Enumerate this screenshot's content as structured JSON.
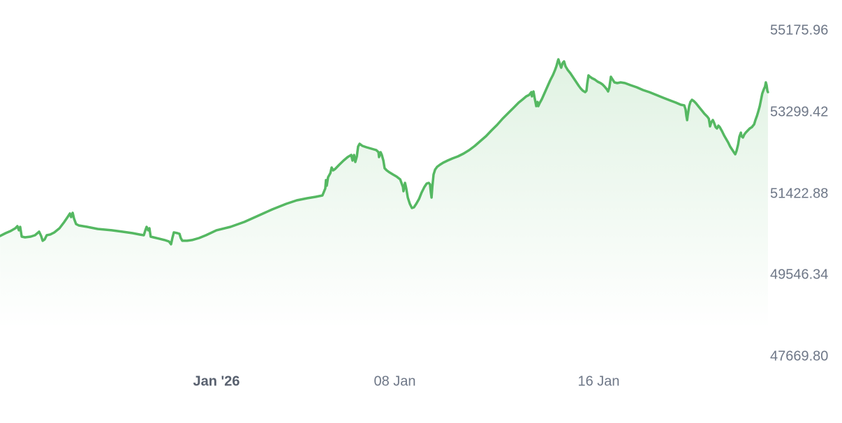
{
  "chart_data": {
    "type": "area",
    "title": "",
    "x_axis": {
      "unit_note": "day 0 = 01 Jan 2026",
      "ticks": [
        {
          "label": "Jan '26",
          "day": 0,
          "bold": true
        },
        {
          "label": "08 Jan",
          "day": 7,
          "bold": false
        },
        {
          "label": "16 Jan",
          "day": 15,
          "bold": false
        }
      ]
    },
    "y_axis": {
      "ticks": [
        {
          "label": "55175.96",
          "value": 55175.96
        },
        {
          "label": "53299.42",
          "value": 53299.42
        },
        {
          "label": "51422.88",
          "value": 51422.88
        },
        {
          "label": "49546.34",
          "value": 49546.34
        },
        {
          "label": "47669.80",
          "value": 47669.8
        }
      ]
    },
    "style": {
      "line_color": "#55B862",
      "fill_color": "#55B862",
      "fill_opacity_top": 0.18,
      "label_color": "#6E7787",
      "bold_label_color": "#59616F",
      "background": "#FFFFFF"
    },
    "series": [
      {
        "name": "price",
        "points": [
          [
            -8.49,
            50451
          ],
          [
            -8.27,
            50515
          ],
          [
            -8.08,
            50563
          ],
          [
            -7.89,
            50627
          ],
          [
            -7.81,
            50676
          ],
          [
            -7.75,
            50580
          ],
          [
            -7.7,
            50660
          ],
          [
            -7.64,
            50435
          ],
          [
            -7.51,
            50419
          ],
          [
            -7.29,
            50435
          ],
          [
            -7.12,
            50467
          ],
          [
            -6.96,
            50548
          ],
          [
            -6.88,
            50451
          ],
          [
            -6.82,
            50339
          ],
          [
            -6.74,
            50371
          ],
          [
            -6.66,
            50467
          ],
          [
            -6.52,
            50484
          ],
          [
            -6.36,
            50532
          ],
          [
            -6.16,
            50627
          ],
          [
            -5.97,
            50773
          ],
          [
            -5.84,
            50885
          ],
          [
            -5.75,
            50966
          ],
          [
            -5.7,
            50885
          ],
          [
            -5.64,
            50982
          ],
          [
            -5.59,
            50853
          ],
          [
            -5.51,
            50725
          ],
          [
            -5.4,
            50692
          ],
          [
            -5.07,
            50660
          ],
          [
            -4.66,
            50612
          ],
          [
            -4.11,
            50580
          ],
          [
            -3.7,
            50548
          ],
          [
            -3.29,
            50515
          ],
          [
            -3.01,
            50483
          ],
          [
            -2.85,
            50467
          ],
          [
            -2.79,
            50580
          ],
          [
            -2.74,
            50660
          ],
          [
            -2.68,
            50580
          ],
          [
            -2.63,
            50627
          ],
          [
            -2.58,
            50435
          ],
          [
            -2.47,
            50419
          ],
          [
            -2.25,
            50387
          ],
          [
            -2.03,
            50355
          ],
          [
            -1.86,
            50322
          ],
          [
            -1.78,
            50259
          ],
          [
            -1.73,
            50403
          ],
          [
            -1.67,
            50532
          ],
          [
            -1.53,
            50515
          ],
          [
            -1.45,
            50499
          ],
          [
            -1.4,
            50403
          ],
          [
            -1.34,
            50339
          ],
          [
            -1.15,
            50339
          ],
          [
            -0.96,
            50355
          ],
          [
            -0.68,
            50403
          ],
          [
            -0.41,
            50467
          ],
          [
            0.0,
            50580
          ],
          [
            0.55,
            50660
          ],
          [
            1.1,
            50773
          ],
          [
            1.64,
            50917
          ],
          [
            2.19,
            51061
          ],
          [
            2.74,
            51190
          ],
          [
            3.15,
            51270
          ],
          [
            3.56,
            51318
          ],
          [
            3.89,
            51350
          ],
          [
            4.16,
            51383
          ],
          [
            4.27,
            51543
          ],
          [
            4.3,
            51736
          ],
          [
            4.33,
            51608
          ],
          [
            4.38,
            51800
          ],
          [
            4.47,
            51898
          ],
          [
            4.52,
            52026
          ],
          [
            4.58,
            51962
          ],
          [
            4.66,
            51994
          ],
          [
            4.82,
            52090
          ],
          [
            4.99,
            52187
          ],
          [
            5.15,
            52267
          ],
          [
            5.29,
            52315
          ],
          [
            5.34,
            52187
          ],
          [
            5.4,
            52315
          ],
          [
            5.45,
            52154
          ],
          [
            5.51,
            52283
          ],
          [
            5.56,
            52508
          ],
          [
            5.62,
            52572
          ],
          [
            5.73,
            52524
          ],
          [
            5.89,
            52492
          ],
          [
            6.08,
            52459
          ],
          [
            6.27,
            52427
          ],
          [
            6.36,
            52379
          ],
          [
            6.38,
            52267
          ],
          [
            6.44,
            52379
          ],
          [
            6.49,
            52315
          ],
          [
            6.55,
            52187
          ],
          [
            6.6,
            52010
          ],
          [
            6.68,
            51962
          ],
          [
            6.79,
            51914
          ],
          [
            6.93,
            51865
          ],
          [
            7.07,
            51817
          ],
          [
            7.21,
            51753
          ],
          [
            7.32,
            51576
          ],
          [
            7.34,
            51480
          ],
          [
            7.37,
            51576
          ],
          [
            7.4,
            51672
          ],
          [
            7.45,
            51543
          ],
          [
            7.51,
            51334
          ],
          [
            7.59,
            51190
          ],
          [
            7.67,
            51093
          ],
          [
            7.75,
            51109
          ],
          [
            7.84,
            51190
          ],
          [
            7.95,
            51302
          ],
          [
            8.05,
            51447
          ],
          [
            8.16,
            51576
          ],
          [
            8.25,
            51656
          ],
          [
            8.33,
            51672
          ],
          [
            8.38,
            51640
          ],
          [
            8.41,
            51463
          ],
          [
            8.44,
            51334
          ],
          [
            8.47,
            51576
          ],
          [
            8.52,
            51865
          ],
          [
            8.58,
            51977
          ],
          [
            8.66,
            52042
          ],
          [
            8.77,
            52090
          ],
          [
            8.9,
            52138
          ],
          [
            9.07,
            52187
          ],
          [
            9.26,
            52235
          ],
          [
            9.48,
            52283
          ],
          [
            9.7,
            52347
          ],
          [
            9.92,
            52427
          ],
          [
            10.14,
            52524
          ],
          [
            10.36,
            52636
          ],
          [
            10.58,
            52749
          ],
          [
            10.79,
            52877
          ],
          [
            11.01,
            53006
          ],
          [
            11.23,
            53151
          ],
          [
            11.45,
            53279
          ],
          [
            11.67,
            53408
          ],
          [
            11.86,
            53520
          ],
          [
            12.03,
            53601
          ],
          [
            12.16,
            53665
          ],
          [
            12.27,
            53697
          ],
          [
            12.36,
            53761
          ],
          [
            12.38,
            53665
          ],
          [
            12.44,
            53777
          ],
          [
            12.49,
            53617
          ],
          [
            12.55,
            53440
          ],
          [
            12.6,
            53536
          ],
          [
            12.63,
            53440
          ],
          [
            12.68,
            53504
          ],
          [
            12.77,
            53601
          ],
          [
            12.88,
            53745
          ],
          [
            12.99,
            53890
          ],
          [
            13.1,
            54035
          ],
          [
            13.21,
            54163
          ],
          [
            13.29,
            54276
          ],
          [
            13.34,
            54356
          ],
          [
            13.4,
            54485
          ],
          [
            13.42,
            54517
          ],
          [
            13.48,
            54404
          ],
          [
            13.53,
            54324
          ],
          [
            13.59,
            54436
          ],
          [
            13.64,
            54468
          ],
          [
            13.7,
            54356
          ],
          [
            13.78,
            54276
          ],
          [
            13.89,
            54195
          ],
          [
            14.0,
            54099
          ],
          [
            14.11,
            54002
          ],
          [
            14.22,
            53906
          ],
          [
            14.3,
            53842
          ],
          [
            14.38,
            53794
          ],
          [
            14.47,
            53761
          ],
          [
            14.52,
            53794
          ],
          [
            14.55,
            53954
          ],
          [
            14.6,
            54147
          ],
          [
            14.66,
            54115
          ],
          [
            14.74,
            54083
          ],
          [
            14.85,
            54051
          ],
          [
            14.96,
            54002
          ],
          [
            15.07,
            53970
          ],
          [
            15.15,
            53938
          ],
          [
            15.23,
            53890
          ],
          [
            15.32,
            53826
          ],
          [
            15.37,
            53777
          ],
          [
            15.42,
            53874
          ],
          [
            15.48,
            54115
          ],
          [
            15.53,
            54067
          ],
          [
            15.62,
            53986
          ],
          [
            15.73,
            53970
          ],
          [
            15.86,
            53986
          ],
          [
            16.03,
            53970
          ],
          [
            16.25,
            53922
          ],
          [
            16.49,
            53874
          ],
          [
            16.74,
            53810
          ],
          [
            16.99,
            53761
          ],
          [
            17.26,
            53697
          ],
          [
            17.53,
            53633
          ],
          [
            17.81,
            53568
          ],
          [
            18.03,
            53520
          ],
          [
            18.22,
            53472
          ],
          [
            18.36,
            53456
          ],
          [
            18.41,
            53359
          ],
          [
            18.44,
            53215
          ],
          [
            18.47,
            53118
          ],
          [
            18.49,
            53215
          ],
          [
            18.55,
            53440
          ],
          [
            18.6,
            53536
          ],
          [
            18.66,
            53585
          ],
          [
            18.74,
            53552
          ],
          [
            18.82,
            53504
          ],
          [
            18.93,
            53424
          ],
          [
            19.04,
            53343
          ],
          [
            19.15,
            53263
          ],
          [
            19.26,
            53199
          ],
          [
            19.32,
            53151
          ],
          [
            19.34,
            53086
          ],
          [
            19.37,
            52974
          ],
          [
            19.42,
            53070
          ],
          [
            19.48,
            53118
          ],
          [
            19.53,
            53054
          ],
          [
            19.59,
            52957
          ],
          [
            19.64,
            52925
          ],
          [
            19.7,
            52990
          ],
          [
            19.75,
            52957
          ],
          [
            19.84,
            52861
          ],
          [
            19.92,
            52765
          ],
          [
            20.0,
            52684
          ],
          [
            20.08,
            52604
          ],
          [
            20.16,
            52508
          ],
          [
            20.25,
            52427
          ],
          [
            20.3,
            52379
          ],
          [
            20.36,
            52331
          ],
          [
            20.41,
            52411
          ],
          [
            20.47,
            52556
          ],
          [
            20.52,
            52733
          ],
          [
            20.58,
            52829
          ],
          [
            20.6,
            52749
          ],
          [
            20.66,
            52717
          ],
          [
            20.71,
            52781
          ],
          [
            20.77,
            52829
          ],
          [
            20.85,
            52877
          ],
          [
            20.93,
            52926
          ],
          [
            21.01,
            52957
          ],
          [
            21.1,
            53022
          ],
          [
            21.15,
            53118
          ],
          [
            21.21,
            53215
          ],
          [
            21.26,
            53311
          ],
          [
            21.32,
            53440
          ],
          [
            21.37,
            53585
          ],
          [
            21.42,
            53729
          ],
          [
            21.48,
            53826
          ],
          [
            21.53,
            53890
          ],
          [
            21.56,
            53986
          ],
          [
            21.59,
            53922
          ],
          [
            21.62,
            53794
          ],
          [
            21.64,
            53761
          ]
        ]
      }
    ]
  }
}
